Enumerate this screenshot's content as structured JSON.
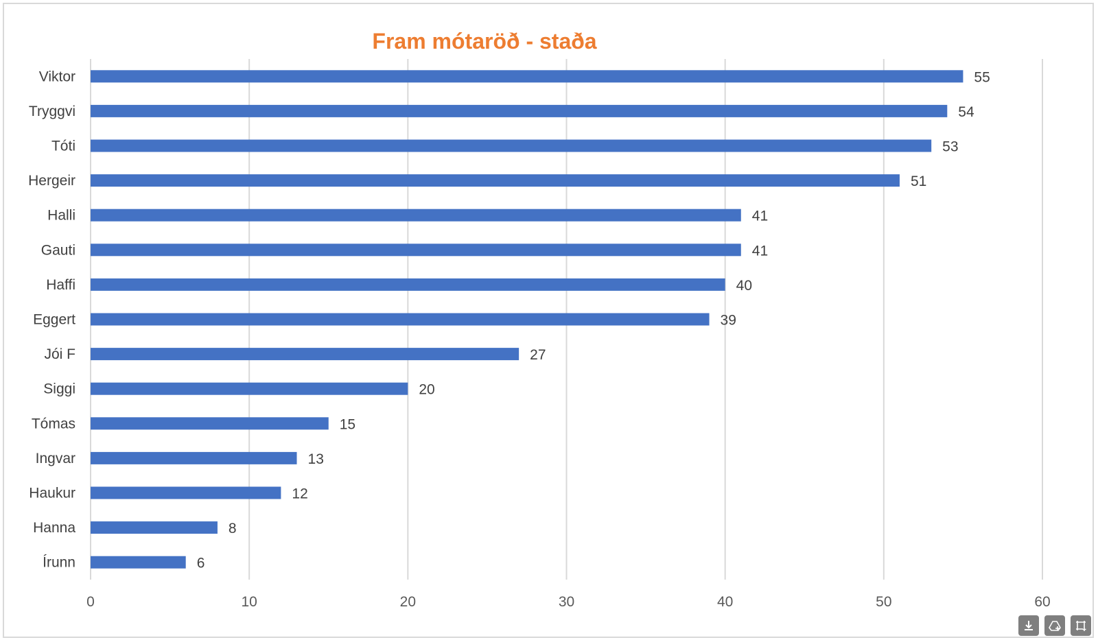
{
  "title": "Fram mótaröð - staða",
  "colors": {
    "bar": "#4472c4",
    "title": "#ed7d31",
    "grid": "#d9d9d9"
  },
  "toolbar": {
    "icons": [
      "download-icon",
      "add-to-drive-icon",
      "select-region-icon"
    ]
  },
  "chart_data": {
    "type": "bar",
    "orientation": "horizontal",
    "title": "Fram mótaröð - staða",
    "categories": [
      "Viktor",
      "Tryggvi",
      "Tóti",
      "Hergeir",
      "Halli",
      "Gauti",
      "Haffi",
      "Eggert",
      "Jói F",
      "Siggi",
      "Tómas",
      "Ingvar",
      "Haukur",
      "Hanna",
      "Írunn"
    ],
    "values": [
      55,
      54,
      53,
      51,
      41,
      41,
      40,
      39,
      27,
      20,
      15,
      13,
      12,
      8,
      6
    ],
    "xlim": [
      0,
      60
    ],
    "xticks": [
      "0",
      "10",
      "20",
      "30",
      "40",
      "50",
      "60"
    ],
    "grid": "vertical",
    "data_labels": true,
    "legend": "none"
  }
}
